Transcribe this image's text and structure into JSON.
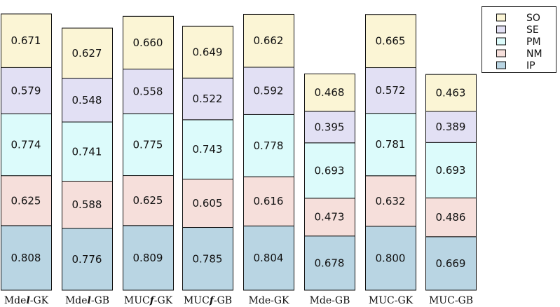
{
  "chart_data": {
    "type": "bar",
    "stacked": true,
    "categories": [
      "Mdel-GK",
      "Mdel-GB",
      "MUCf-GK",
      "MUCf-GB",
      "Mde-GK",
      "Mde-GB",
      "MUC-GK",
      "MUC-GB"
    ],
    "category_labels": [
      {
        "prefix": "Mde",
        "emph": "l",
        "suffix": "-GK"
      },
      {
        "prefix": "Mde",
        "emph": "l",
        "suffix": "-GB"
      },
      {
        "prefix": "MUC",
        "emph": "f",
        "suffix": "-GK"
      },
      {
        "prefix": "MUC",
        "emph": "f",
        "suffix": "-GB"
      },
      {
        "prefix": "Mde-GK",
        "emph": "",
        "suffix": ""
      },
      {
        "prefix": "Mde-GB",
        "emph": "",
        "suffix": ""
      },
      {
        "prefix": "MUC-GK",
        "emph": "",
        "suffix": ""
      },
      {
        "prefix": "MUC-GB",
        "emph": "",
        "suffix": ""
      }
    ],
    "series": [
      {
        "name": "IP",
        "color": "#b9d5e3",
        "values": [
          0.808,
          0.776,
          0.809,
          0.785,
          0.804,
          0.678,
          0.8,
          0.669
        ]
      },
      {
        "name": "NM",
        "color": "#f6dfdb",
        "values": [
          0.625,
          0.588,
          0.625,
          0.605,
          0.616,
          0.473,
          0.632,
          0.486
        ]
      },
      {
        "name": "PM",
        "color": "#dcfbfb",
        "values": [
          0.774,
          0.741,
          0.775,
          0.743,
          0.778,
          0.693,
          0.781,
          0.693
        ]
      },
      {
        "name": "SE",
        "color": "#e2e0f4",
        "values": [
          0.579,
          0.548,
          0.558,
          0.522,
          0.592,
          0.395,
          0.572,
          0.389
        ]
      },
      {
        "name": "SO",
        "color": "#fbf5d5",
        "values": [
          0.671,
          0.627,
          0.66,
          0.649,
          0.662,
          0.468,
          0.665,
          0.463
        ]
      }
    ],
    "legend_order": [
      "SO",
      "SE",
      "PM",
      "NM",
      "IP"
    ],
    "legend_position": "top-right",
    "grid": false,
    "title": "",
    "xlabel": "",
    "ylabel": ""
  }
}
